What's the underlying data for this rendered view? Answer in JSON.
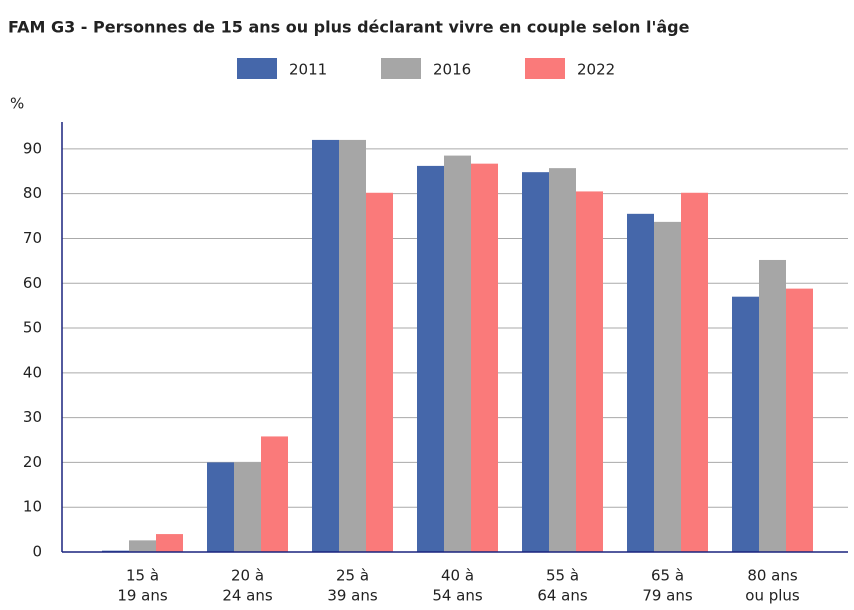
{
  "chart_data": {
    "type": "bar",
    "title": "FAM G3 - Personnes de 15 ans ou plus déclarant vivre en couple selon l'âge",
    "y_label": "%",
    "categories": [
      [
        "15 à",
        "19 ans"
      ],
      [
        "20 à",
        "24 ans"
      ],
      [
        "25 à",
        "39 ans"
      ],
      [
        "40 à",
        "54 ans"
      ],
      [
        "55 à",
        "64 ans"
      ],
      [
        "65 à",
        "79 ans"
      ],
      [
        "80 ans",
        "ou plus"
      ]
    ],
    "series": [
      {
        "name": "2011",
        "color": "#4567aa",
        "values": [
          0.3,
          20,
          92,
          86.2,
          84.8,
          75.5,
          57
        ]
      },
      {
        "name": "2016",
        "color": "#a6a6a6",
        "values": [
          2.6,
          20,
          92,
          88.5,
          85.7,
          73.7,
          65.2
        ]
      },
      {
        "name": "2022",
        "color": "#fa7a7a",
        "values": [
          4,
          25.8,
          80.2,
          86.7,
          80.5,
          80.2,
          58.8
        ]
      }
    ],
    "ylim": [
      0,
      96
    ],
    "yticks": [
      0,
      10,
      20,
      30,
      40,
      50,
      60,
      70,
      80,
      90
    ],
    "grid": true
  }
}
